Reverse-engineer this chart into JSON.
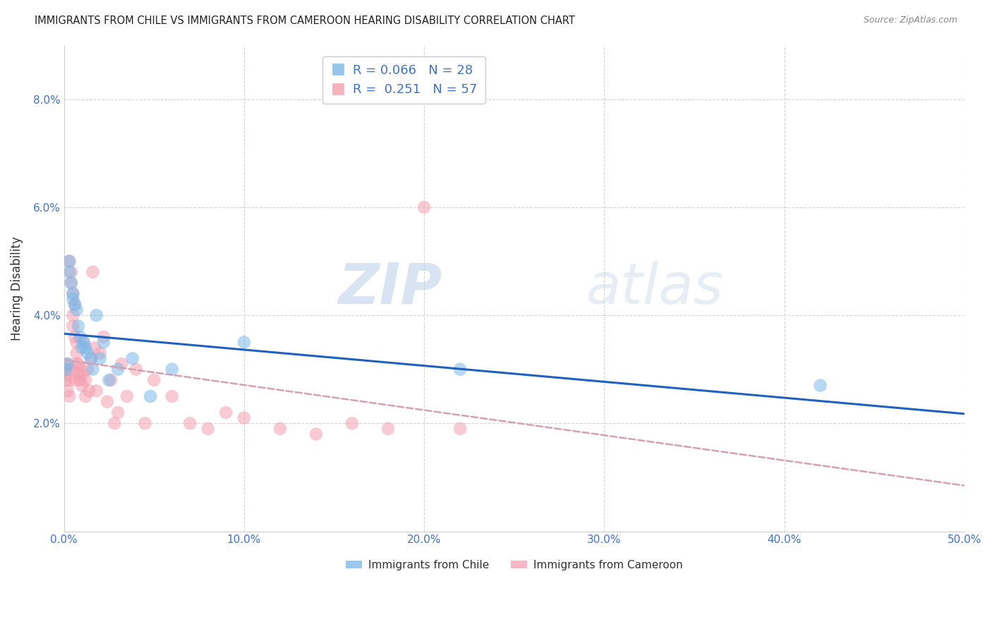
{
  "title": "IMMIGRANTS FROM CHILE VS IMMIGRANTS FROM CAMEROON HEARING DISABILITY CORRELATION CHART",
  "source": "Source: ZipAtlas.com",
  "ylabel": "Hearing Disability",
  "xlim": [
    0,
    0.5
  ],
  "ylim": [
    0,
    0.09
  ],
  "xtick_vals": [
    0.0,
    0.1,
    0.2,
    0.3,
    0.4,
    0.5
  ],
  "xtick_labels": [
    "0.0%",
    "10.0%",
    "20.0%",
    "30.0%",
    "40.0%",
    "50.0%"
  ],
  "ytick_vals": [
    0.0,
    0.02,
    0.04,
    0.06,
    0.08
  ],
  "ytick_labels": [
    "",
    "2.0%",
    "4.0%",
    "6.0%",
    "8.0%"
  ],
  "chile_color": "#7ab8e8",
  "cameroon_color": "#f4a0b0",
  "chile_line_color": "#2060c0",
  "cameroon_line_color": "#d0a0b0",
  "chile_R": "0.066",
  "chile_N": "28",
  "cameroon_R": "0.251",
  "cameroon_N": "57",
  "watermark_zip": "ZIP",
  "watermark_atlas": "atlas",
  "tick_color": "#4472c4",
  "grid_color": "#d0d0d0",
  "chile_scatter_x": [
    0.001,
    0.002,
    0.003,
    0.003,
    0.004,
    0.005,
    0.005,
    0.006,
    0.007,
    0.008,
    0.009,
    0.01,
    0.011,
    0.012,
    0.013,
    0.015,
    0.016,
    0.018,
    0.02,
    0.022,
    0.025,
    0.03,
    0.038,
    0.048,
    0.06,
    0.1,
    0.22,
    0.42
  ],
  "chile_scatter_y": [
    0.03,
    0.031,
    0.05,
    0.048,
    0.046,
    0.044,
    0.043,
    0.042,
    0.041,
    0.038,
    0.036,
    0.034,
    0.035,
    0.034,
    0.033,
    0.032,
    0.03,
    0.04,
    0.032,
    0.035,
    0.028,
    0.03,
    0.032,
    0.025,
    0.03,
    0.035,
    0.03,
    0.027
  ],
  "cameroon_scatter_x": [
    0.001,
    0.001,
    0.002,
    0.002,
    0.002,
    0.003,
    0.003,
    0.003,
    0.004,
    0.004,
    0.004,
    0.005,
    0.005,
    0.005,
    0.006,
    0.006,
    0.006,
    0.007,
    0.007,
    0.007,
    0.008,
    0.008,
    0.009,
    0.009,
    0.01,
    0.01,
    0.011,
    0.012,
    0.012,
    0.013,
    0.014,
    0.015,
    0.016,
    0.017,
    0.018,
    0.02,
    0.022,
    0.024,
    0.026,
    0.028,
    0.03,
    0.032,
    0.035,
    0.04,
    0.045,
    0.05,
    0.06,
    0.07,
    0.08,
    0.09,
    0.1,
    0.12,
    0.14,
    0.16,
    0.18,
    0.2,
    0.22
  ],
  "cameroon_scatter_y": [
    0.029,
    0.028,
    0.03,
    0.031,
    0.026,
    0.025,
    0.028,
    0.05,
    0.048,
    0.046,
    0.03,
    0.044,
    0.04,
    0.038,
    0.042,
    0.036,
    0.028,
    0.035,
    0.033,
    0.031,
    0.031,
    0.029,
    0.03,
    0.028,
    0.029,
    0.027,
    0.035,
    0.028,
    0.025,
    0.03,
    0.026,
    0.032,
    0.048,
    0.034,
    0.026,
    0.033,
    0.036,
    0.024,
    0.028,
    0.02,
    0.022,
    0.031,
    0.025,
    0.03,
    0.02,
    0.028,
    0.025,
    0.02,
    0.019,
    0.022,
    0.021,
    0.019,
    0.018,
    0.02,
    0.019,
    0.06,
    0.019
  ]
}
